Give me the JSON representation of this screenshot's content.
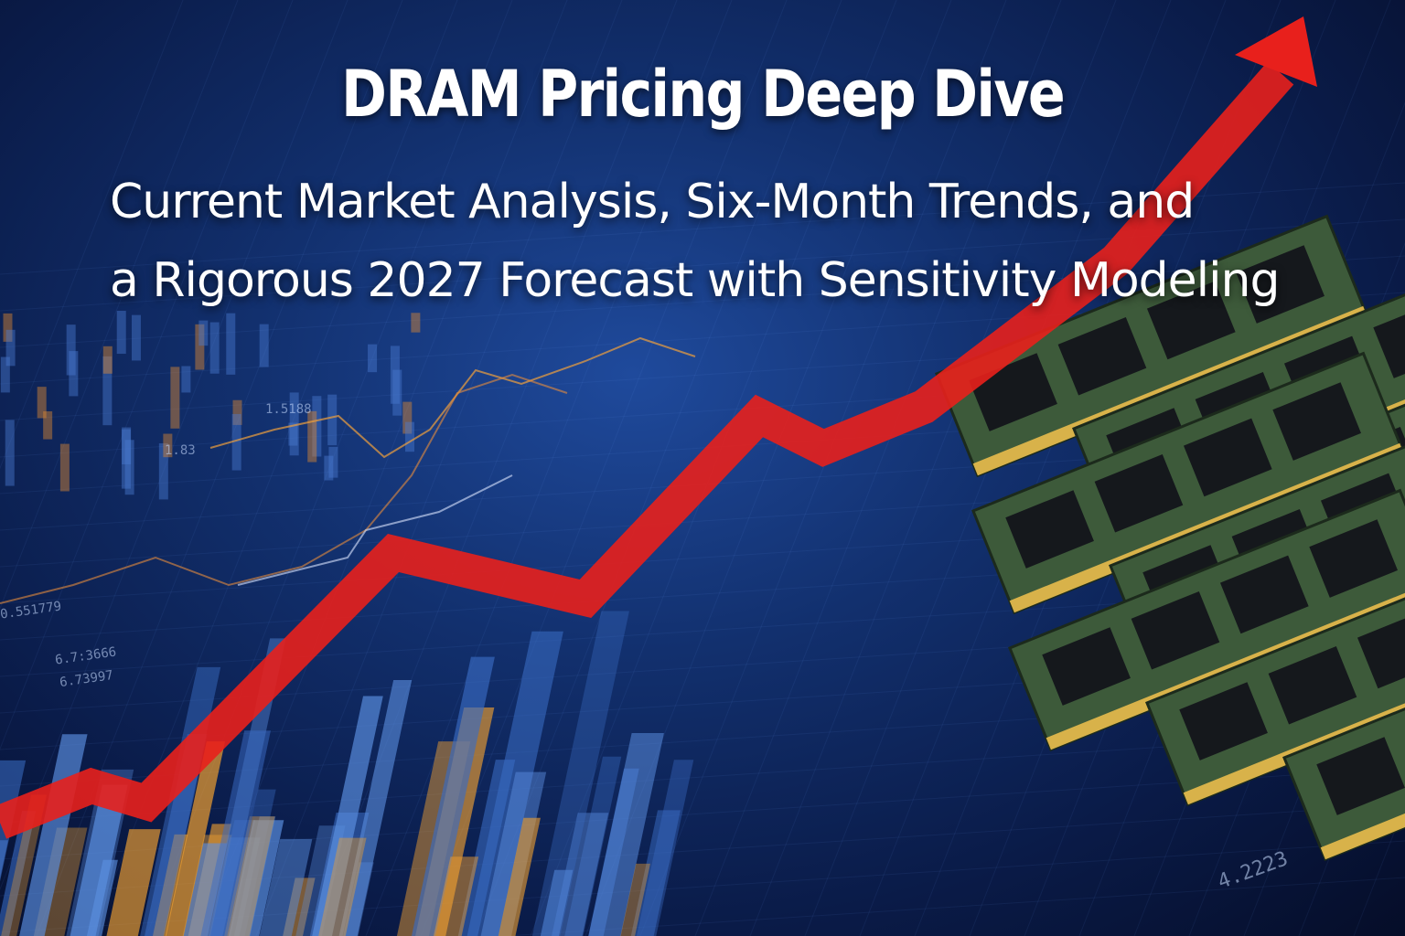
{
  "title": "DRAM Pricing Deep Dive",
  "subtitle_line1": "Current Market Analysis, Six-Month Trends, and",
  "subtitle_line2": "a Rigorous 2027 Forecast with Sensitivity Modeling",
  "background_labels": [
    "1.5188",
    "1.83",
    "6.73997",
    "6.7:3666",
    "4.2223",
    "0.551779"
  ],
  "colors": {
    "arrow": "#e8201c",
    "background": "#12306e",
    "text": "#ffffff",
    "accent_orange": "#f0a030"
  },
  "icons": [
    "trend-arrow-up-icon",
    "ram-module-icon"
  ]
}
